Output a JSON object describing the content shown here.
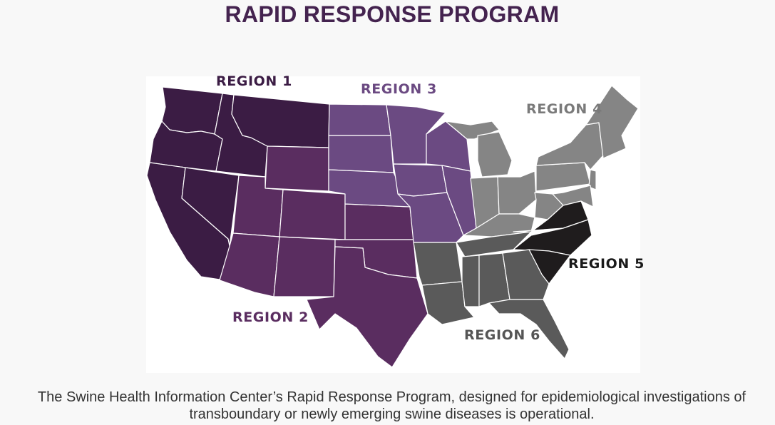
{
  "page": {
    "title": "RAPID RESPONSE PROGRAM",
    "caption": "The Swine Health Information Center’s Rapid Response Program, designed for epidemiological investigations of transboundary or newly emerging swine diseases is operational."
  },
  "regions": [
    {
      "id": "region-1",
      "label": "REGION 1",
      "fill": "#3b1c44",
      "label_color": "#3b1c44"
    },
    {
      "id": "region-2",
      "label": "REGION 2",
      "fill": "#5a2d60",
      "label_color": "#5a2d60"
    },
    {
      "id": "region-3",
      "label": "REGION 3",
      "fill": "#6b4a82",
      "label_color": "#6b4a82"
    },
    {
      "id": "region-4",
      "label": "REGION 4",
      "fill": "#858585",
      "label_color": "#7a7a7a"
    },
    {
      "id": "region-5",
      "label": "REGION 5",
      "fill": "#1f1c1d",
      "label_color": "#1a1a1a"
    },
    {
      "id": "region-6",
      "label": "REGION 6",
      "fill": "#5a5a5a",
      "label_color": "#555555"
    }
  ]
}
